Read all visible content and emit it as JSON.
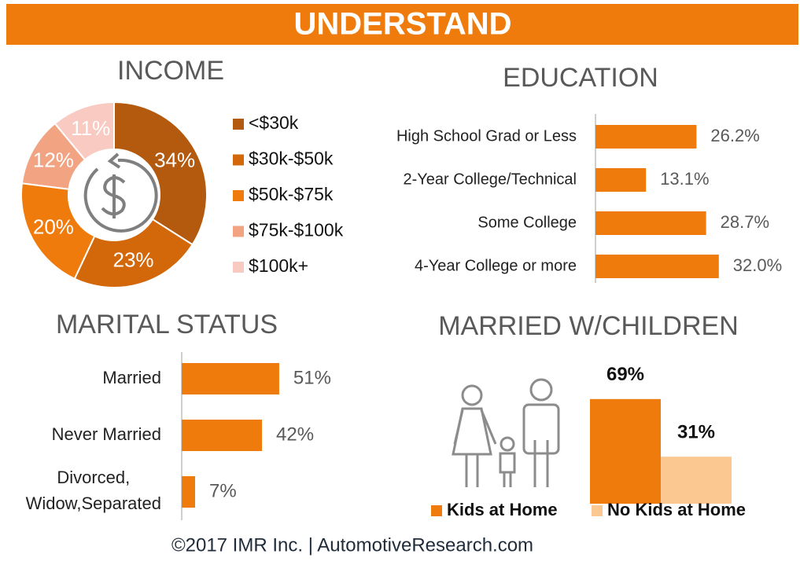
{
  "header": {
    "title": "UNDERSTAND"
  },
  "chart_data": [
    {
      "type": "pie",
      "title": "INCOME",
      "donut": true,
      "categories": [
        "<$30k",
        "$30k-$50k",
        "$50k-$75k",
        "$75k-$100k",
        "$100k+"
      ],
      "values": [
        34,
        23,
        20,
        12,
        11
      ],
      "value_labels": [
        "34%",
        "23%",
        "20%",
        "12%",
        "11%"
      ],
      "colors": [
        "#b45a0e",
        "#d2680a",
        "#ee7b0c",
        "#f2a382",
        "#f8cac2"
      ],
      "legend": "right"
    },
    {
      "type": "bar",
      "orientation": "horizontal",
      "title": "EDUCATION",
      "categories": [
        "High School Grad or Less",
        "2-Year College/Technical",
        "Some College",
        "4-Year College or more"
      ],
      "values": [
        26.2,
        13.1,
        28.7,
        32.0
      ],
      "value_labels": [
        "26.2%",
        "13.1%",
        "28.7%",
        "32.0%"
      ],
      "color": "#ee7b0c"
    },
    {
      "type": "bar",
      "orientation": "horizontal",
      "title": "MARITAL STATUS",
      "categories": [
        "Married",
        "Never Married",
        "Divorced,\nWidow,Separated"
      ],
      "values": [
        51,
        42,
        7
      ],
      "value_labels": [
        "51%",
        "42%",
        "7%"
      ],
      "color": "#ee7b0c"
    },
    {
      "type": "bar",
      "orientation": "vertical",
      "title": "MARRIED W/CHILDREN",
      "series": [
        {
          "name": "Kids at Home",
          "color": "#ee7b0c",
          "values": [
            69
          ],
          "value_labels": [
            "69%"
          ]
        },
        {
          "name": "No Kids at Home",
          "color": "#fcc892",
          "values": [
            31
          ],
          "value_labels": [
            "31%"
          ]
        }
      ],
      "legend": "bottom"
    }
  ],
  "footer": {
    "text": "©2017 IMR Inc. | AutomotiveResearch.com"
  }
}
